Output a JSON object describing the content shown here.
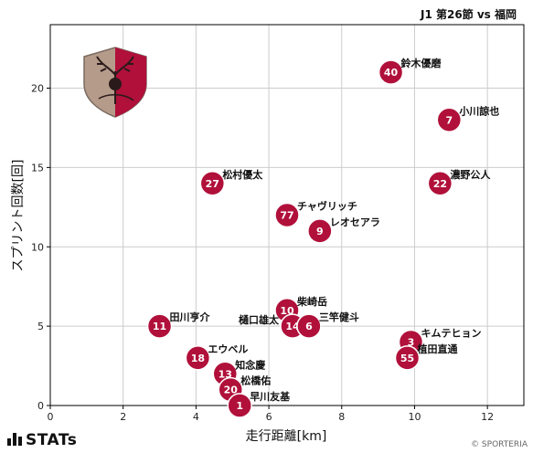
{
  "header": {
    "title": "J1 第26節 vs 福岡"
  },
  "colors": {
    "point_fill": "#b0103a",
    "point_stroke": "#ffffff",
    "grid": "#cccccc",
    "axis": "#000000"
  },
  "footer": {
    "brand": "STATs",
    "copyright": "© SPORTERIA"
  },
  "chart_data": {
    "type": "scatter",
    "title": "J1 第26節 vs 福岡",
    "xlabel": "走行距離[km]",
    "ylabel": "スプリント回数[回]",
    "xlim": [
      0,
      13
    ],
    "ylim": [
      0,
      24
    ],
    "xticks": [
      0,
      2,
      4,
      6,
      8,
      10,
      12
    ],
    "yticks": [
      0,
      5,
      10,
      15,
      20
    ],
    "grid": true,
    "points": [
      {
        "number": "40",
        "name": "鈴木優磨",
        "x": 9.35,
        "y": 21,
        "label_pos": "right"
      },
      {
        "number": "7",
        "name": "小川諒也",
        "x": 10.95,
        "y": 18,
        "label_pos": "right"
      },
      {
        "number": "27",
        "name": "松村優太",
        "x": 4.45,
        "y": 14,
        "label_pos": "right"
      },
      {
        "number": "22",
        "name": "濃野公人",
        "x": 10.7,
        "y": 14,
        "label_pos": "right"
      },
      {
        "number": "77",
        "name": "チャヴリッチ",
        "x": 6.5,
        "y": 12,
        "label_pos": "right"
      },
      {
        "number": "9",
        "name": "レオセアラ",
        "x": 7.4,
        "y": 11,
        "label_pos": "right"
      },
      {
        "number": "10",
        "name": "柴崎岳",
        "x": 6.5,
        "y": 6,
        "label_pos": "right"
      },
      {
        "number": "11",
        "name": "田川亨介",
        "x": 3.0,
        "y": 5,
        "label_pos": "right"
      },
      {
        "number": "14",
        "name": "樋口雄太",
        "x": 6.65,
        "y": 5,
        "label_pos": "left"
      },
      {
        "number": "6",
        "name": "三竿健斗",
        "x": 7.1,
        "y": 5,
        "label_pos": "right"
      },
      {
        "number": "3",
        "name": "キムテヒョン",
        "x": 9.9,
        "y": 4,
        "label_pos": "right"
      },
      {
        "number": "55",
        "name": "植田直通",
        "x": 9.8,
        "y": 3,
        "label_pos": "right"
      },
      {
        "number": "18",
        "name": "エウベル",
        "x": 4.05,
        "y": 3,
        "label_pos": "right"
      },
      {
        "number": "13",
        "name": "知念慶",
        "x": 4.8,
        "y": 2,
        "label_pos": "right"
      },
      {
        "number": "20",
        "name": "松橋佑",
        "x": 4.95,
        "y": 1,
        "label_pos": "right"
      },
      {
        "number": "1",
        "name": "早川友基",
        "x": 5.2,
        "y": 0,
        "label_pos": "right"
      }
    ]
  }
}
